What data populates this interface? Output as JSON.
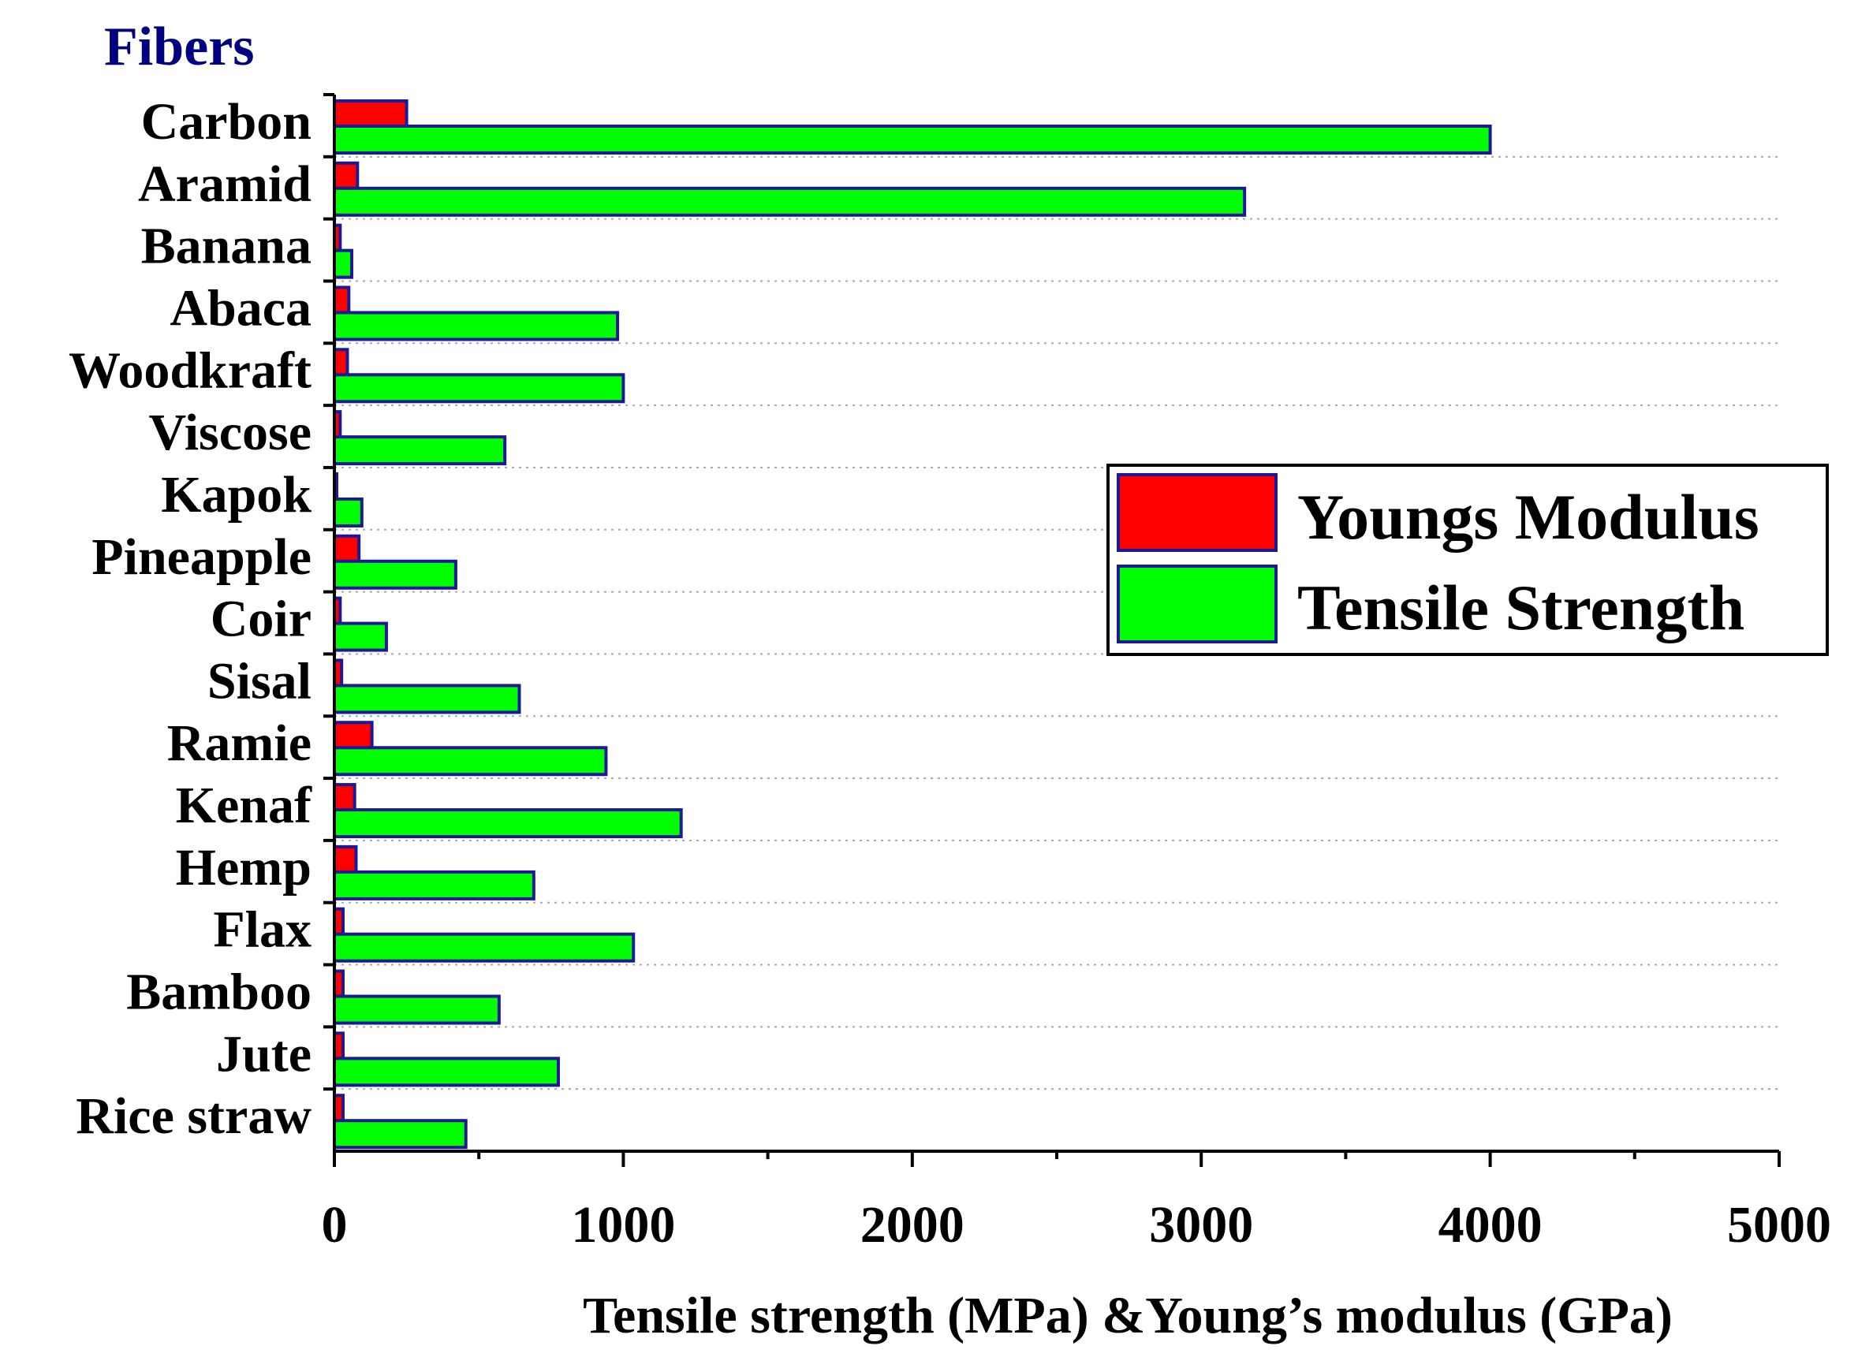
{
  "chart_data": {
    "type": "bar",
    "orientation": "horizontal",
    "ylabel": "Fibers",
    "xlabel": "Tensile strength (MPa) &Young’s modulus (GPa)",
    "xlim": [
      0,
      5000
    ],
    "xticks": [
      "0",
      "1000",
      "2000",
      "3000",
      "4000",
      "5000"
    ],
    "categories": [
      "Carbon",
      "Aramid",
      "Banana",
      "Abaca",
      "Woodkraft",
      "Viscose",
      "Kapok",
      "Pineapple",
      "Coir",
      "Sisal",
      "Ramie",
      "Kenaf",
      "Hemp",
      "Flax",
      "Bamboo",
      "Jute",
      "Rice straw"
    ],
    "series": [
      {
        "name": "Youngs Modulus",
        "color": "#ff0000",
        "values": [
          250,
          80,
          20,
          50,
          45,
          20,
          5,
          85,
          20,
          25,
          130,
          70,
          75,
          30,
          30,
          30,
          30
        ]
      },
      {
        "name": "Tensile Strength",
        "color": "#00ff00",
        "values": [
          4000,
          3150,
          60,
          980,
          1000,
          590,
          95,
          420,
          180,
          640,
          940,
          1200,
          690,
          1035,
          570,
          775,
          455
        ]
      }
    ],
    "grid": "horizontal dotted",
    "legend_position": "center-right"
  }
}
